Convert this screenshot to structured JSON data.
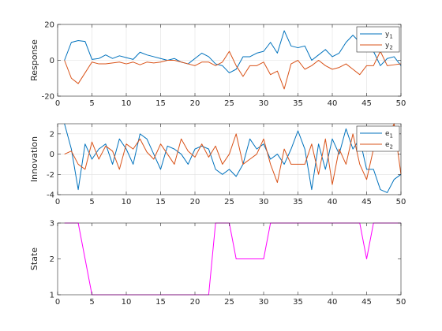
{
  "colors": {
    "series1": "#0072BD",
    "series2": "#D95319",
    "state": "#FF00FF",
    "grid": "#DFDFDF",
    "axis": "#262626"
  },
  "chart_data": [
    {
      "type": "line",
      "ylabel": "Response",
      "xlim": [
        0,
        50
      ],
      "ylim": [
        -20,
        20
      ],
      "xticks": [
        "0",
        "5",
        "10",
        "15",
        "20",
        "25",
        "30",
        "35",
        "40",
        "45",
        "50"
      ],
      "yticks": [
        "-20",
        "0",
        "20"
      ],
      "grid": true,
      "legend": "top-right",
      "x": [
        1,
        2,
        3,
        4,
        5,
        6,
        7,
        8,
        9,
        10,
        11,
        12,
        13,
        14,
        15,
        16,
        17,
        18,
        19,
        20,
        21,
        22,
        23,
        24,
        25,
        26,
        27,
        28,
        29,
        30,
        31,
        32,
        33,
        34,
        35,
        36,
        37,
        38,
        39,
        40,
        41,
        42,
        43,
        44,
        45,
        46,
        47,
        48,
        49,
        50
      ],
      "series": [
        {
          "name": "y",
          "sub": "1",
          "values": [
            0,
            10,
            11,
            10.5,
            0.5,
            1,
            3,
            1,
            2.5,
            1.5,
            0.5,
            4.5,
            3,
            2,
            1,
            0,
            1,
            -1,
            -2,
            1,
            4,
            2,
            -2,
            -3,
            -7,
            -5,
            2,
            2,
            4,
            5,
            10,
            4,
            16.5,
            8,
            7,
            8,
            0,
            3,
            6,
            2,
            4,
            10,
            14,
            10,
            8,
            5,
            -3,
            1,
            2,
            -3
          ]
        },
        {
          "name": "y",
          "sub": "2",
          "values": [
            0,
            -10,
            -13,
            -7,
            -1,
            -2,
            -2,
            -1.5,
            -1,
            -2,
            -1,
            -2.5,
            -1,
            -1.5,
            -1,
            0,
            0,
            -1,
            -2,
            -3,
            -1,
            -1,
            -3,
            -1,
            5,
            -3,
            -9,
            -3,
            -3,
            -1,
            -8,
            -6,
            -16,
            -2,
            0,
            -5,
            -3,
            0,
            -3,
            -5,
            -4,
            -2,
            -5,
            -8,
            -3,
            -3,
            5,
            -3,
            -2.5,
            -2
          ]
        }
      ]
    },
    {
      "type": "line",
      "ylabel": "Innovation",
      "xlim": [
        0,
        50
      ],
      "ylim": [
        -4,
        3
      ],
      "xticks": [
        "0",
        "5",
        "10",
        "15",
        "20",
        "25",
        "30",
        "35",
        "40",
        "45",
        "50"
      ],
      "yticks": [
        "-4",
        "-2",
        "0",
        "2"
      ],
      "grid": true,
      "legend": "top-right",
      "x": [
        1,
        2,
        3,
        4,
        5,
        6,
        7,
        8,
        9,
        10,
        11,
        12,
        13,
        14,
        15,
        16,
        17,
        18,
        19,
        20,
        21,
        22,
        23,
        24,
        25,
        26,
        27,
        28,
        29,
        30,
        31,
        32,
        33,
        34,
        35,
        36,
        37,
        38,
        39,
        40,
        41,
        42,
        43,
        44,
        45,
        46,
        47,
        48,
        49,
        50
      ],
      "series": [
        {
          "name": "e",
          "sub": "1",
          "values": [
            3,
            0.5,
            -3.5,
            1,
            -0.5,
            0.5,
            1,
            -1,
            1.5,
            0.5,
            -1,
            2,
            1.5,
            0,
            -1.5,
            0.8,
            0.5,
            0,
            -1,
            0.5,
            0.8,
            0.5,
            -1.5,
            -2,
            -1.5,
            -2.2,
            -1,
            1.5,
            0.5,
            1,
            -0.5,
            0,
            -1,
            0.5,
            2.3,
            0.5,
            -3.5,
            1,
            -1.5,
            1.5,
            0,
            2.5,
            0.5,
            1.5,
            -1.5,
            -1.5,
            -3.5,
            -3.8,
            -2.5,
            -2
          ]
        },
        {
          "name": "e",
          "sub": "2",
          "values": [
            0,
            0.3,
            -1,
            -1.5,
            1.2,
            -0.5,
            0.8,
            0.3,
            -1.5,
            1,
            0.5,
            1.5,
            0.2,
            -0.5,
            1,
            0,
            -1,
            1.5,
            0.3,
            -0.3,
            1,
            -0.3,
            0.8,
            -1,
            0,
            2,
            -1,
            -0.5,
            0,
            1.5,
            -1,
            -2.8,
            0.5,
            -1,
            -1,
            -1,
            1,
            -2,
            1.5,
            -3,
            0.5,
            -1,
            2,
            -1,
            -2.5,
            0.5,
            0.5,
            1.5,
            3,
            -2
          ]
        }
      ]
    },
    {
      "type": "line",
      "ylabel": "State",
      "xlim": [
        0,
        50
      ],
      "ylim": [
        1,
        3
      ],
      "xticks": [
        "0",
        "5",
        "10",
        "15",
        "20",
        "25",
        "30",
        "35",
        "40",
        "45",
        "50"
      ],
      "yticks": [
        "1",
        "2",
        "3"
      ],
      "grid": false,
      "x": [
        1,
        2,
        3,
        4,
        5,
        6,
        7,
        8,
        9,
        10,
        11,
        12,
        13,
        14,
        15,
        16,
        17,
        18,
        19,
        20,
        21,
        22,
        23,
        24,
        25,
        26,
        27,
        28,
        29,
        30,
        31,
        32,
        33,
        34,
        35,
        36,
        37,
        38,
        39,
        40,
        41,
        42,
        43,
        44,
        45,
        46,
        47,
        48,
        49,
        50
      ],
      "series": [
        {
          "values": [
            3,
            3,
            3,
            2,
            1,
            1,
            1,
            1,
            1,
            1,
            1,
            1,
            1,
            1,
            1,
            1,
            1,
            1,
            1,
            1,
            1,
            1,
            3,
            3,
            3,
            2,
            2,
            2,
            2,
            2,
            3,
            3,
            3,
            3,
            3,
            3,
            3,
            3,
            3,
            3,
            3,
            3,
            3,
            3,
            2,
            3,
            3,
            3,
            3,
            3
          ]
        }
      ]
    }
  ]
}
